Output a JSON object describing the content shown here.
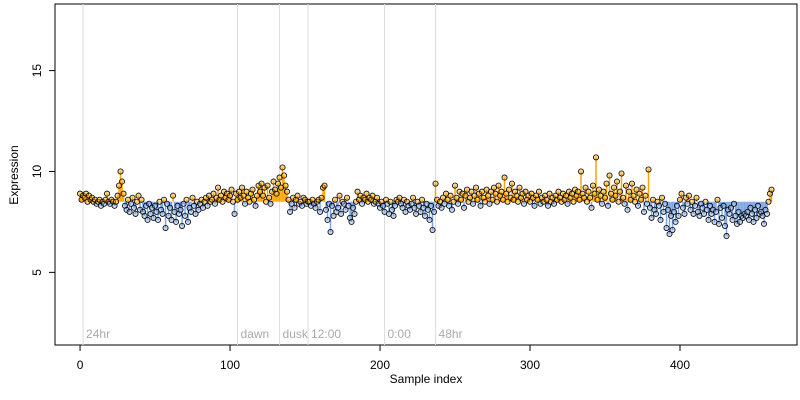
{
  "chart_data": {
    "type": "scatter",
    "title": null,
    "xlabel": "Sample index",
    "ylabel": "Expression",
    "xlim": [
      -16.7,
      478
    ],
    "ylim": [
      1.4,
      18.3
    ],
    "xticks": [
      0,
      100,
      200,
      300,
      400
    ],
    "yticks": [
      5,
      10,
      15
    ],
    "reference_line": 8.5,
    "above_color": "#ffa500",
    "below_color": "#7ea6e0",
    "events": [
      {
        "x": 2,
        "label": "24hr"
      },
      {
        "x": 105,
        "label": "dawn"
      },
      {
        "x": 133,
        "label": "dusk"
      },
      {
        "x": 152,
        "label": "12:00"
      },
      {
        "x": 203,
        "label": "0:00"
      },
      {
        "x": 237,
        "label": "48hr"
      }
    ],
    "values": [
      8.9,
      8.6,
      8.8,
      8.7,
      8.9,
      8.5,
      8.8,
      8.6,
      8.7,
      8.5,
      8.6,
      8.4,
      8.5,
      8.6,
      8.3,
      8.5,
      8.4,
      8.6,
      8.9,
      8.5,
      8.4,
      8.6,
      8.5,
      8.3,
      8.5,
      8.8,
      9.3,
      10.0,
      9.5,
      8.9,
      8.3,
      8.1,
      8.6,
      8.0,
      8.4,
      8.7,
      8.2,
      7.9,
      8.5,
      8.8,
      8.1,
      8.6,
      8.0,
      7.8,
      8.3,
      7.6,
      8.4,
      7.9,
      8.2,
      7.7,
      8.3,
      8.0,
      7.6,
      8.5,
      8.1,
      7.9,
      8.6,
      7.2,
      8.4,
      7.8,
      8.2,
      7.6,
      8.8,
      8.0,
      7.5,
      8.3,
      7.9,
      8.1,
      7.3,
      8.4,
      7.8,
      8.6,
      7.5,
      8.2,
      8.0,
      8.7,
      8.3,
      7.9,
      8.5,
      8.1,
      8.4,
      8.6,
      8.2,
      8.5,
      8.7,
      8.3,
      8.8,
      8.5,
      8.6,
      8.9,
      8.4,
      8.7,
      9.2,
      8.6,
      8.8,
      8.5,
      9.0,
      8.7,
      8.9,
      8.6,
      8.8,
      9.1,
      8.5,
      7.9,
      8.9,
      8.6,
      9.0,
      8.7,
      9.2,
      8.8,
      8.4,
      9.0,
      8.7,
      8.5,
      8.9,
      9.1,
      8.6,
      8.3,
      8.8,
      9.3,
      9.0,
      9.4,
      8.8,
      9.2,
      8.5,
      9.3,
      8.7,
      8.4,
      9.0,
      9.5,
      9.1,
      8.9,
      9.4,
      9.7,
      9.2,
      10.2,
      9.8,
      9.3,
      9.0,
      8.6,
      8.0,
      8.4,
      8.7,
      8.2,
      8.6,
      8.8,
      8.4,
      8.5,
      8.3,
      8.7,
      8.6,
      8.4,
      8.5,
      8.5,
      8.3,
      8.6,
      8.4,
      8.2,
      8.5,
      8.6,
      8.0,
      8.7,
      9.2,
      9.3,
      8.1,
      7.6,
      8.4,
      7.0,
      8.3,
      7.8,
      8.6,
      8.0,
      8.2,
      8.8,
      7.9,
      8.5,
      8.4,
      8.1,
      8.7,
      8.3,
      7.7,
      7.5,
      8.2,
      7.9,
      8.5,
      9.0,
      8.6,
      8.8,
      8.4,
      8.7,
      8.6,
      8.9,
      8.5,
      8.7,
      8.6,
      8.8,
      8.4,
      8.5,
      8.7,
      8.4,
      8.2,
      8.5,
      8.3,
      8.0,
      8.6,
      8.4,
      7.9,
      8.5,
      8.1,
      7.8,
      8.3,
      8.6,
      8.5,
      8.7,
      8.4,
      8.2,
      8.6,
      8.0,
      8.5,
      8.3,
      8.1,
      8.4,
      8.7,
      8.2,
      7.9,
      8.5,
      8.3,
      8.0,
      8.6,
      8.2,
      7.8,
      8.4,
      8.1,
      7.6,
      8.3,
      7.1,
      8.0,
      9.4,
      8.6,
      8.3,
      8.5,
      8.2,
      8.7,
      8.4,
      8.9,
      8.6,
      8.3,
      8.8,
      8.1,
      8.5,
      9.3,
      8.7,
      8.4,
      9.0,
      8.6,
      8.9,
      8.2,
      8.8,
      9.1,
      8.5,
      8.7,
      9.0,
      8.4,
      8.8,
      9.2,
      8.6,
      8.9,
      8.3,
      9.0,
      8.7,
      8.5,
      9.1,
      8.8,
      8.4,
      9.0,
      8.6,
      9.2,
      8.9,
      8.5,
      9.3,
      8.8,
      9.0,
      8.6,
      9.7,
      8.9,
      8.5,
      9.1,
      8.7,
      9.4,
      8.6,
      9.0,
      8.8,
      8.5,
      9.2,
      8.7,
      8.9,
      8.4,
      9.0,
      8.6,
      8.8,
      8.5,
      8.9,
      8.7,
      8.3,
      8.8,
      8.6,
      9.0,
      8.4,
      8.7,
      8.5,
      8.8,
      8.6,
      8.3,
      8.9,
      8.5,
      8.7,
      8.4,
      8.8,
      8.6,
      9.0,
      8.7,
      8.5,
      8.9,
      8.6,
      8.8,
      8.4,
      9.0,
      8.7,
      8.9,
      8.5,
      9.1,
      8.8,
      9.0,
      8.6,
      10.0,
      8.9,
      8.7,
      9.2,
      8.5,
      9.0,
      8.7,
      8.2,
      9.3,
      8.9,
      10.7,
      8.6,
      9.1,
      8.8,
      8.4,
      9.0,
      8.7,
      9.4,
      8.3,
      9.8,
      8.9,
      8.6,
      9.2,
      8.8,
      9.5,
      8.5,
      9.0,
      9.9,
      8.7,
      8.4,
      9.3,
      8.1,
      9.0,
      8.6,
      9.4,
      8.8,
      8.5,
      9.1,
      8.3,
      8.9,
      8.6,
      9.2,
      8.0,
      8.8,
      8.4,
      10.1,
      8.2,
      7.7,
      8.6,
      8.1,
      7.9,
      8.5,
      8.3,
      7.6,
      8.7,
      8.0,
      8.4,
      7.2,
      8.1,
      6.9,
      7.8,
      7.1,
      8.0,
      7.5,
      8.3,
      7.8,
      8.6,
      8.9,
      8.2,
      7.9,
      8.7,
      8.4,
      8.8,
      8.1,
      8.5,
      7.9,
      8.3,
      8.7,
      8.0,
      7.8,
      8.4,
      8.2,
      7.9,
      8.5,
      8.1,
      7.6,
      8.3,
      7.9,
      8.1,
      7.5,
      8.0,
      8.6,
      7.4,
      8.2,
      7.7,
      8.3,
      7.3,
      6.8,
      8.1,
      7.9,
      8.2,
      7.6,
      8.4,
      7.8,
      7.4,
      8.0,
      7.5,
      7.8,
      7.7,
      7.9,
      7.8,
      8.0,
      7.6,
      8.2,
      7.9,
      7.5,
      8.1,
      7.7,
      8.3,
      7.9,
      8.0,
      7.8,
      7.4,
      8.1,
      7.9,
      8.5,
      8.9,
      9.1
    ]
  }
}
